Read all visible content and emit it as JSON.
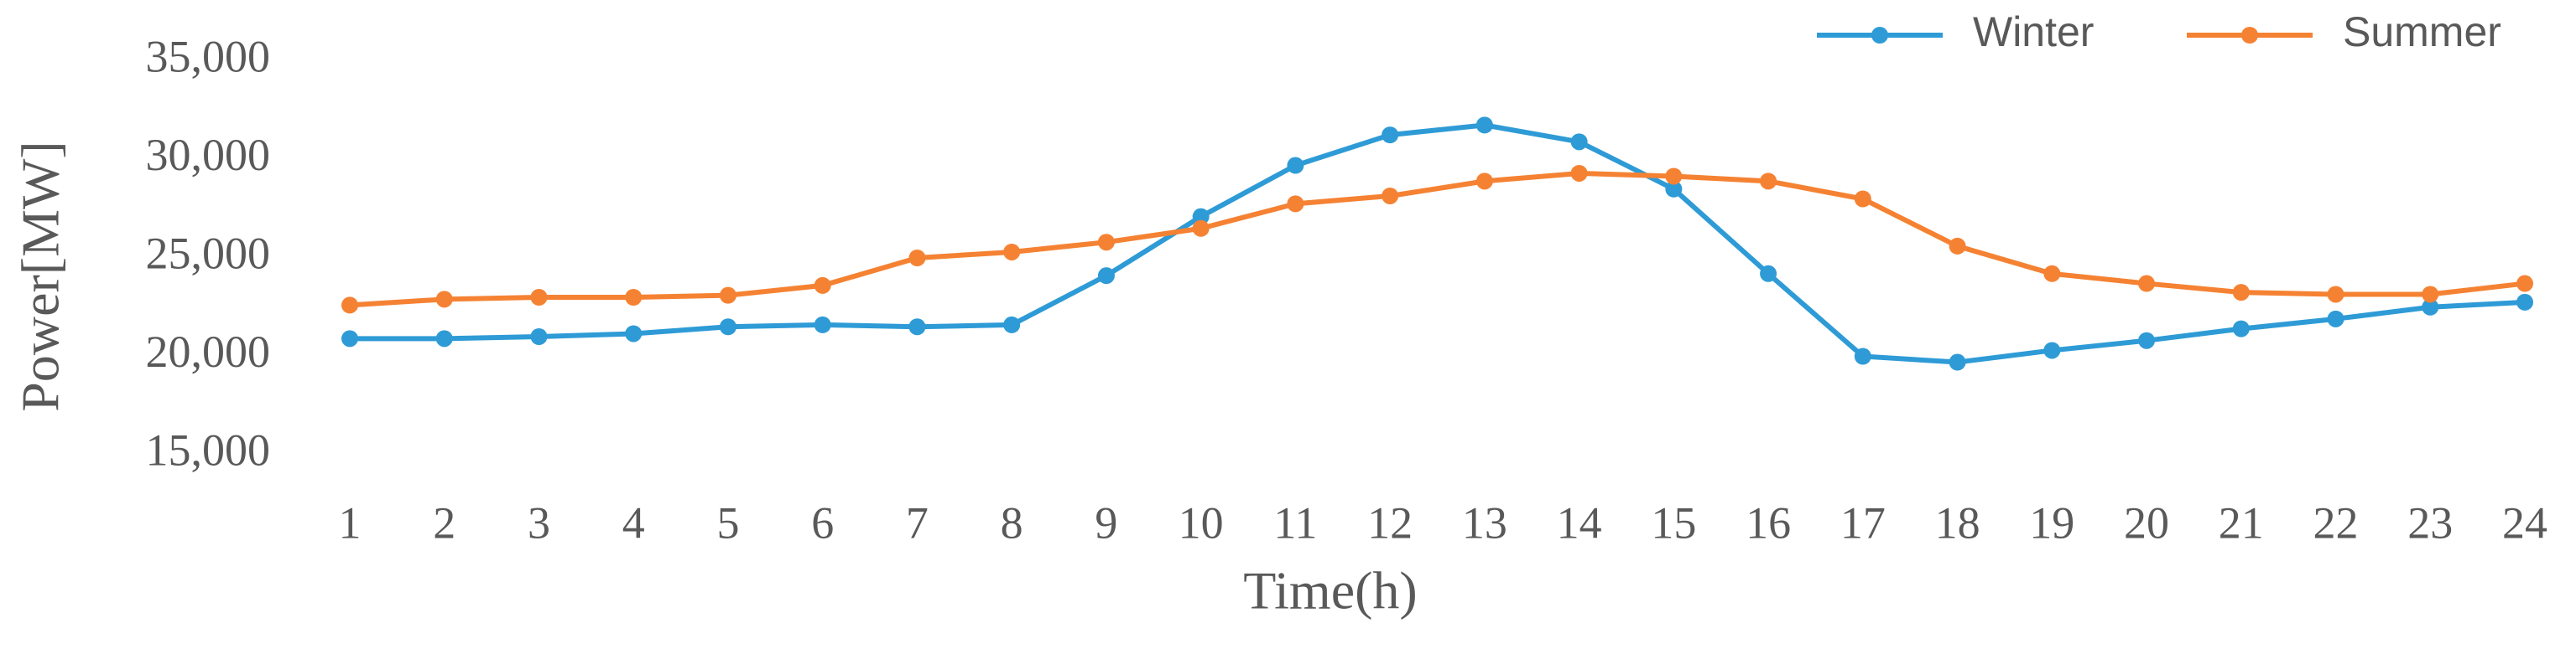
{
  "chart_data": {
    "type": "line",
    "x_label": "Time(h)",
    "y_label": "Power[MW]",
    "categories": [
      "1",
      "2",
      "3",
      "4",
      "5",
      "6",
      "7",
      "8",
      "9",
      "10",
      "11",
      "12",
      "13",
      "14",
      "15",
      "16",
      "17",
      "18",
      "19",
      "20",
      "21",
      "22",
      "23",
      "24"
    ],
    "series": [
      {
        "name": "Winter",
        "color": "#2e9bd6",
        "values": [
          20900,
          20900,
          21000,
          21150,
          21500,
          21600,
          21500,
          21600,
          24100,
          27100,
          29700,
          31250,
          31750,
          30900,
          28500,
          24200,
          20000,
          19700,
          20300,
          20800,
          21400,
          21900,
          22500,
          22750
        ]
      },
      {
        "name": "Summer",
        "color": "#f58233",
        "values": [
          22600,
          22900,
          23000,
          23000,
          23100,
          23600,
          25000,
          25300,
          25800,
          26500,
          27750,
          28150,
          28900,
          29300,
          29150,
          28900,
          28000,
          25600,
          24200,
          23700,
          23250,
          23150,
          23150,
          23700
        ]
      }
    ],
    "ylim": [
      15000,
      35000
    ],
    "yticks": [
      {
        "value": 15000,
        "label": "15,000"
      },
      {
        "value": 20000,
        "label": "20,000"
      },
      {
        "value": 25000,
        "label": "25,000"
      },
      {
        "value": 30000,
        "label": "30,000"
      },
      {
        "value": 35000,
        "label": "35,000"
      }
    ],
    "grid": false,
    "legend": "top-right"
  }
}
